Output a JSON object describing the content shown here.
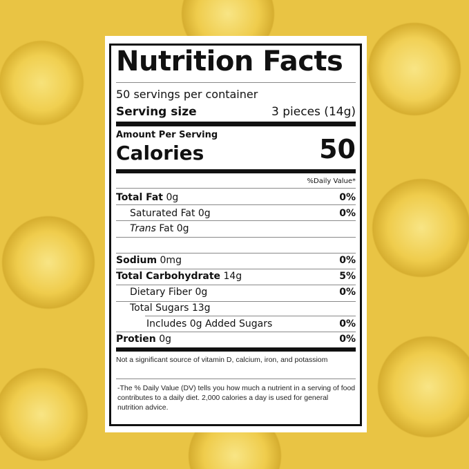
{
  "label": {
    "title": "Nutrition Facts",
    "servings": "50 servings per container",
    "serving_size_label": "Serving size",
    "serving_size_value": "3 pieces (14g)",
    "amount_per_serving": "Amount Per Serving",
    "calories_label": "Calories",
    "calories_value": "50",
    "daily_value_header": "%Daily Value*",
    "rows": [
      {
        "name": "Total Fat",
        "amount": " 0g",
        "dv": "0%",
        "bold": true
      },
      {
        "name": "Saturated Fat",
        "amount": " 0g",
        "dv": "0%"
      },
      {
        "name": "Trans",
        "amount": " Fat 0g",
        "dv": ""
      },
      {
        "name": "",
        "amount": "",
        "dv": ""
      },
      {
        "name": "Sodium",
        "amount": " 0mg",
        "dv": "0%",
        "bold": true
      },
      {
        "name": "Total Carbohydrate",
        "amount": " 14g",
        "dv": "5%",
        "bold": true
      },
      {
        "name": "Dietary Fiber",
        "amount": " 0g",
        "dv": "0%"
      },
      {
        "name": "Total Sugars",
        "amount": " 13g",
        "dv": ""
      },
      {
        "name": "Includes 0g Added Sugars",
        "amount": "",
        "dv": "0%"
      },
      {
        "name": "Protien",
        "amount": " 0g",
        "dv": "0%",
        "bold": true
      }
    ],
    "footnote_1": "Not a significant source of vitamin D, calcium, iron, and potassiom",
    "footnote_2": "-The % Daily Value (DV) tells you how much a nutrient in a serving of food contributes to a daily diet. 2,000 calories a day is used for general nutrition advice."
  }
}
